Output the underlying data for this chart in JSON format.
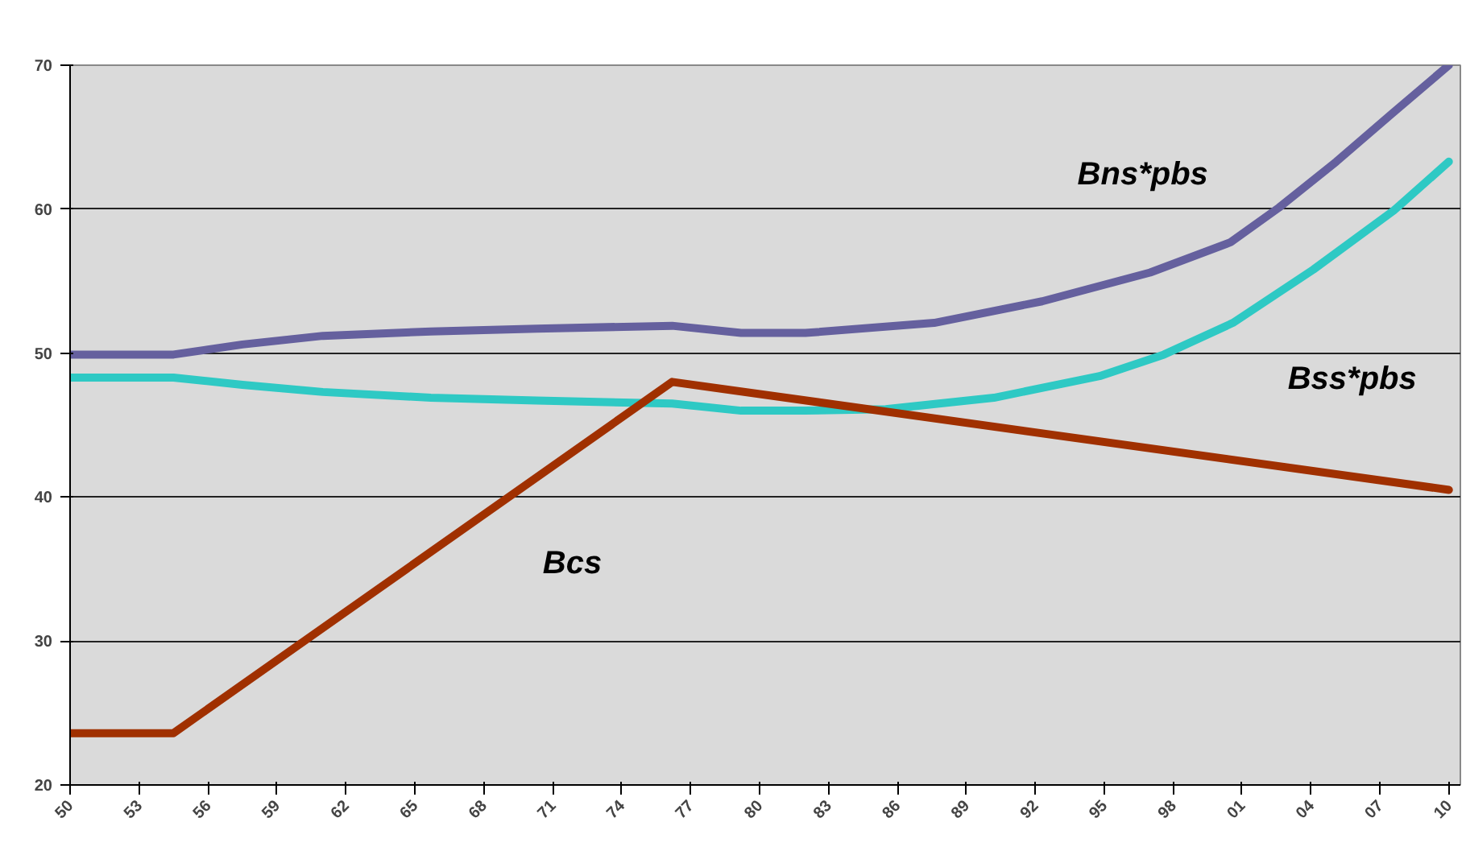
{
  "chart_data": {
    "type": "line",
    "xlim": [
      1950,
      2010.5
    ],
    "ylim": [
      20,
      70
    ],
    "xticks": [
      {
        "value": 1950,
        "label": "50"
      },
      {
        "value": 1953,
        "label": "53"
      },
      {
        "value": 1956,
        "label": "56"
      },
      {
        "value": 1959,
        "label": "59"
      },
      {
        "value": 1962,
        "label": "62"
      },
      {
        "value": 1965,
        "label": "65"
      },
      {
        "value": 1968,
        "label": "68"
      },
      {
        "value": 1971,
        "label": "71"
      },
      {
        "value": 1974,
        "label": "74"
      },
      {
        "value": 1977,
        "label": "77"
      },
      {
        "value": 1980,
        "label": "80"
      },
      {
        "value": 1983,
        "label": "83"
      },
      {
        "value": 1986,
        "label": "86"
      },
      {
        "value": 1989,
        "label": "89"
      },
      {
        "value": 1992,
        "label": "92"
      },
      {
        "value": 1995,
        "label": "95"
      },
      {
        "value": 1998,
        "label": "98"
      },
      {
        "value": 2001,
        "label": "01"
      },
      {
        "value": 2004,
        "label": "04"
      },
      {
        "value": 2007,
        "label": "07"
      },
      {
        "value": 2010,
        "label": "10"
      }
    ],
    "yticks": [
      20,
      30,
      40,
      50,
      60,
      70
    ],
    "grid": "y",
    "line_style": "solid",
    "marker": "none",
    "series": [
      {
        "name": "Bns*pbs",
        "color": "#65609e",
        "x": [
          1950,
          1954.5,
          1957.5,
          1961,
          1965.7,
          1970.3,
          1976.2,
          1979.2,
          1982,
          1987.6,
          1992.3,
          1997,
          2000.5,
          2002.6,
          2005.1,
          2007.5,
          2010
        ],
        "values": [
          49.9,
          49.9,
          50.6,
          51.2,
          51.5,
          51.7,
          51.9,
          51.4,
          51.4,
          52.1,
          53.6,
          55.6,
          57.7,
          60.1,
          63.3,
          66.6,
          70
        ]
      },
      {
        "name": "Bss*pbs",
        "color": "#2ec9c4",
        "x": [
          1950,
          1954.5,
          1957.5,
          1961,
          1965.7,
          1970.3,
          1976.2,
          1979.2,
          1982,
          1985.5,
          1990.2,
          1994.8,
          1997.6,
          2000.6,
          2004.1,
          2007.6,
          2010
        ],
        "values": [
          48.3,
          48.3,
          47.8,
          47.3,
          46.9,
          46.7,
          46.5,
          46.0,
          46.0,
          46.1,
          46.9,
          48.4,
          49.9,
          52.1,
          55.8,
          59.9,
          63.3
        ]
      },
      {
        "name": "Bcs",
        "color": "#a03000",
        "x": [
          1950,
          1954.5,
          1976.2,
          2010
        ],
        "values": [
          23.6,
          23.6,
          48.0,
          40.5
        ]
      }
    ]
  }
}
